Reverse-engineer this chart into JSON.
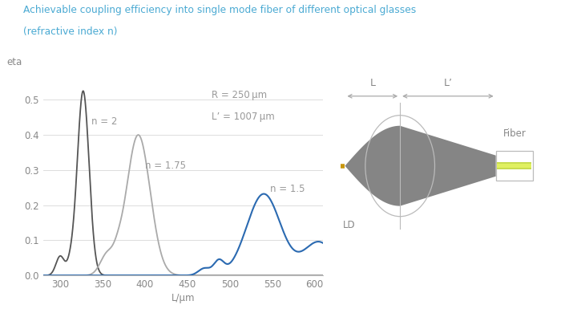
{
  "title_line1": "Achievable coupling efficiency into single mode fiber of different optical glasses",
  "title_line2": "(refractive index n)",
  "title_color": "#4baad3",
  "xlabel": "L/μm",
  "ylabel": "eta",
  "annotation_R": "R = 250 μm",
  "annotation_Lp": "L’ = 1007 μm",
  "annotation_color": "#999999",
  "xmin": 280,
  "xmax": 610,
  "ymin": 0,
  "ymax": 0.57,
  "yticks": [
    0,
    0.1,
    0.2,
    0.3,
    0.4,
    0.5
  ],
  "xticks": [
    300,
    350,
    400,
    450,
    500,
    550,
    600
  ],
  "grid_color": "#d8d8d8",
  "bg_color": "#ffffff",
  "curve_n2_color": "#555555",
  "curve_n175_color": "#aaaaaa",
  "curve_n15_color": "#2b6ab1",
  "label_n2": "n = 2",
  "label_n175": "n = 1.75",
  "label_n15": "n = 1.5",
  "label_color": "#999999"
}
